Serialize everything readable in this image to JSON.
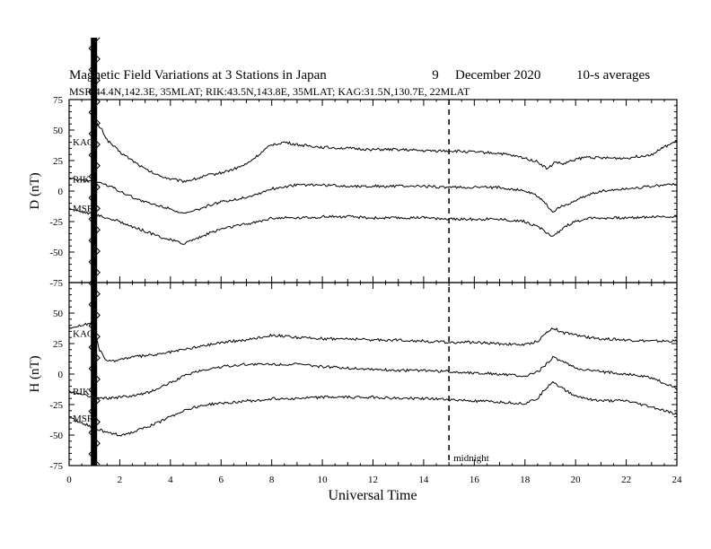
{
  "chart_data": {
    "type": "line",
    "title": "Magnetic Field Variations at 3 Stations in Japan",
    "date_day": "9",
    "date_month_year": "December 2020",
    "averaging": "10-s averages",
    "subtitle": "MSR:44.4N,142.3E, 35MLAT;  RIK:43.5N,143.8E, 35MLAT;  KAG:31.5N,130.7E, 22MLAT",
    "xlabel": "Universal Time",
    "xlim": [
      0,
      24
    ],
    "xticks": [
      0,
      2,
      4,
      6,
      8,
      10,
      12,
      14,
      16,
      18,
      20,
      22,
      24
    ],
    "annotation": {
      "label": "midnight",
      "x": 15
    },
    "panels": [
      {
        "ylabel": "D (nT)",
        "ylim": [
          -75,
          75
        ],
        "yticks": [
          75,
          50,
          25,
          0,
          -25,
          -50,
          -75
        ],
        "series": [
          {
            "name": "KAG",
            "x": [
              0.9,
              1.1,
              1.3,
              1.5,
              2.0,
              2.5,
              3.0,
              3.5,
              4.0,
              4.5,
              5.0,
              5.5,
              6.0,
              6.5,
              7.0,
              7.5,
              8.0,
              8.5,
              9,
              10,
              11,
              12,
              13,
              14,
              15,
              16,
              17,
              18,
              18.5,
              18.9,
              19.2,
              19.5,
              20,
              20.5,
              21,
              22,
              23,
              23.5,
              24
            ],
            "y": [
              45,
              55,
              50,
              42,
              32,
              25,
              18,
              13,
              10,
              8,
              10,
              13,
              15,
              18,
              22,
              30,
              38,
              40,
              38,
              36,
              35,
              34,
              34,
              33,
              33,
              32,
              31,
              27,
              24,
              18,
              24,
              22,
              26,
              28,
              27,
              27,
              30,
              36,
              41
            ]
          },
          {
            "name": "RIK",
            "x": [
              0,
              0.5,
              1,
              1.5,
              2,
              2.5,
              3,
              3.5,
              4,
              4.5,
              5,
              5.5,
              6,
              6.5,
              7,
              7.5,
              8,
              9,
              10,
              11,
              12,
              13,
              14,
              15,
              16,
              17,
              18,
              18.5,
              18.8,
              19.1,
              19.5,
              20,
              20.5,
              21,
              22,
              23,
              24
            ],
            "y": [
              10,
              9,
              8,
              5,
              0,
              -5,
              -9,
              -12,
              -14,
              -19,
              -16,
              -12,
              -9,
              -7,
              -5,
              -2,
              2,
              5,
              5,
              4,
              4,
              4,
              4,
              3,
              3,
              3,
              0,
              -4,
              -10,
              -17,
              -12,
              -8,
              -3,
              0,
              2,
              4,
              6
            ]
          },
          {
            "name": "MSR",
            "x": [
              0,
              0.5,
              1,
              1.5,
              2,
              2.5,
              3,
              3.5,
              4,
              4.5,
              5,
              5.5,
              6,
              6.5,
              7,
              7.5,
              8,
              9,
              10,
              11,
              12,
              13,
              14,
              15,
              16,
              17,
              18,
              18.5,
              18.8,
              19.1,
              19.5,
              20,
              20.5,
              21,
              22,
              23,
              24
            ],
            "y": [
              -14,
              -17,
              -19,
              -22,
              -25,
              -29,
              -33,
              -37,
              -40,
              -43,
              -39,
              -35,
              -31,
              -29,
              -27,
              -25,
              -22,
              -22,
              -21,
              -21,
              -22,
              -22,
              -22,
              -23,
              -23,
              -23,
              -25,
              -29,
              -33,
              -38,
              -30,
              -25,
              -22,
              -22,
              -22,
              -21,
              -21
            ]
          }
        ]
      },
      {
        "ylabel": "H (nT)",
        "ylim": [
          -75,
          75
        ],
        "yticks": [
          50,
          25,
          0,
          -25,
          -50,
          -75
        ],
        "series": [
          {
            "name": "KAG",
            "x": [
              0,
              0.5,
              0.9,
              1.2,
              1.5,
              2,
              2.5,
              3,
              3.5,
              4,
              4.5,
              5,
              5.5,
              6,
              6.5,
              7,
              7.5,
              8,
              9,
              10,
              11,
              12,
              13,
              14,
              15,
              16,
              17,
              18,
              18.5,
              18.8,
              19.1,
              19.5,
              20,
              20.5,
              21,
              22,
              23,
              24
            ],
            "y": [
              38,
              40,
              42,
              20,
              10,
              12,
              14,
              15,
              16,
              18,
              20,
              22,
              24,
              26,
              27,
              28,
              30,
              32,
              30,
              29,
              29,
              28,
              28,
              27,
              26,
              26,
              25,
              24,
              27,
              33,
              38,
              34,
              32,
              30,
              29,
              28,
              27,
              27
            ]
          },
          {
            "name": "RIK",
            "x": [
              0,
              0.5,
              1,
              1.5,
              2,
              2.5,
              3,
              3.5,
              4,
              4.5,
              5,
              5.5,
              6,
              6.5,
              7,
              7.5,
              8,
              9,
              10,
              11,
              12,
              13,
              14,
              15,
              16,
              17,
              18,
              18.5,
              18.8,
              19.1,
              19.5,
              20,
              20.5,
              21,
              22,
              23,
              24
            ],
            "y": [
              -14,
              -17,
              -20,
              -20,
              -19,
              -18,
              -16,
              -12,
              -7,
              -2,
              2,
              4,
              6,
              7,
              8,
              8,
              8,
              8,
              6,
              5,
              4,
              3,
              3,
              2,
              1,
              0,
              -2,
              2,
              7,
              14,
              10,
              5,
              3,
              2,
              0,
              -3,
              -12
            ]
          },
          {
            "name": "MSR",
            "x": [
              0,
              0.5,
              1,
              1.5,
              2,
              2.5,
              3,
              3.5,
              4,
              4.5,
              5,
              5.5,
              6,
              6.5,
              7,
              7.5,
              8,
              9,
              10,
              11,
              12,
              13,
              14,
              15,
              16,
              17,
              18,
              18.5,
              18.8,
              19.1,
              19.5,
              20,
              20.5,
              21,
              22,
              23,
              24
            ],
            "y": [
              -36,
              -40,
              -44,
              -48,
              -50,
              -48,
              -44,
              -40,
              -35,
              -30,
              -27,
              -25,
              -24,
              -23,
              -22,
              -22,
              -20,
              -20,
              -19,
              -19,
              -19,
              -20,
              -20,
              -21,
              -22,
              -23,
              -24,
              -20,
              -12,
              -6,
              -12,
              -18,
              -20,
              -22,
              -22,
              -27,
              -33
            ]
          }
        ]
      }
    ]
  }
}
